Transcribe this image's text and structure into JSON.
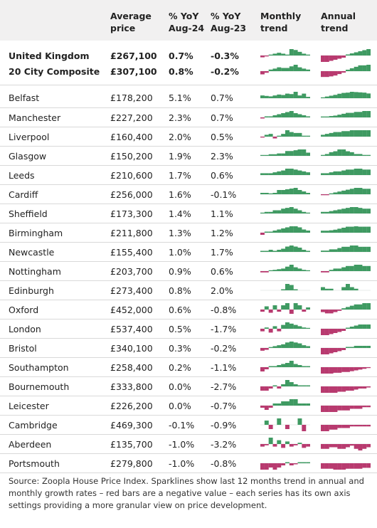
{
  "header": {
    "location": "",
    "avg_price": "Average price",
    "yoy24": "% YoY Aug-24",
    "yoy23": "% YoY Aug-23",
    "monthly": "Monthly trend",
    "annual": "Annual trend"
  },
  "colors": {
    "positive": "#3f9a62",
    "negative": "#b83a6f",
    "header_bg": "#f1f0f0",
    "divider": "#d9d9d9"
  },
  "summary_rows": [
    {
      "name": "United Kingdom",
      "price": "£267,100",
      "yoy24": "0.7%",
      "yoy23": "-0.3%",
      "monthly": [
        -0.1,
        -0.05,
        0.05,
        0.1,
        0.15,
        0.1,
        0.05,
        0.35,
        0.3,
        0.2,
        0.1,
        0.05
      ],
      "annual": [
        -0.3,
        -0.3,
        -0.25,
        -0.2,
        -0.15,
        -0.1,
        0.05,
        0.1,
        0.15,
        0.2,
        0.25,
        0.3
      ]
    },
    {
      "name": "20 City Composite",
      "price": "£307,100",
      "yoy24": "0.8%",
      "yoy23": "-0.2%",
      "monthly": [
        -0.1,
        -0.05,
        0.05,
        0.08,
        0.12,
        0.1,
        0.1,
        0.15,
        0.2,
        0.12,
        0.08,
        0.05
      ],
      "annual": [
        -0.2,
        -0.2,
        -0.18,
        -0.15,
        -0.1,
        -0.05,
        0.05,
        0.1,
        0.15,
        0.2,
        0.2,
        0.22
      ]
    }
  ],
  "cities": [
    {
      "name": "Belfast",
      "price": "£178,200",
      "yoy24": "5.1%",
      "yoy23": "0.7%",
      "monthly": [
        0.6,
        0.5,
        0.4,
        0.6,
        0.8,
        0.7,
        1.0,
        0.9,
        1.4,
        0.6,
        1.0,
        0.3
      ],
      "annual": [
        0.3,
        0.6,
        0.9,
        1.2,
        1.6,
        1.9,
        2.0,
        2.3,
        2.2,
        2.1,
        2.0,
        1.7
      ]
    },
    {
      "name": "Manchester",
      "price": "£227,200",
      "yoy24": "2.3%",
      "yoy23": "0.7%",
      "monthly": [
        -0.1,
        0.1,
        0.1,
        0.2,
        0.3,
        0.4,
        0.5,
        0.6,
        0.4,
        0.3,
        0.2,
        0.1
      ],
      "annual": [
        0.1,
        0.1,
        0.15,
        0.2,
        0.3,
        0.4,
        0.5,
        0.5,
        0.6,
        0.6,
        0.7,
        0.7
      ]
    },
    {
      "name": "Liverpool",
      "price": "£160,400",
      "yoy24": "2.0%",
      "yoy23": "0.5%",
      "monthly": [
        -0.1,
        0.2,
        0.3,
        -0.2,
        0.1,
        0.3,
        0.7,
        0.5,
        0.4,
        0.4,
        0.1,
        0.1
      ],
      "annual": [
        0.2,
        0.3,
        0.4,
        0.5,
        0.5,
        0.6,
        0.6,
        0.7,
        0.7,
        0.7,
        0.7,
        0.7
      ]
    },
    {
      "name": "Glasgow",
      "price": "£150,200",
      "yoy24": "1.9%",
      "yoy23": "2.3%",
      "monthly": [
        0.1,
        0.1,
        0.2,
        0.2,
        0.3,
        0.3,
        0.6,
        0.6,
        0.7,
        0.8,
        0.8,
        0.4
      ],
      "annual": [
        0.1,
        0.2,
        0.4,
        0.5,
        0.7,
        0.7,
        0.5,
        0.4,
        0.2,
        0.2,
        0.1,
        0.1
      ]
    },
    {
      "name": "Leeds",
      "price": "£210,600",
      "yoy24": "1.7%",
      "yoy23": "0.6%",
      "monthly": [
        0.1,
        0.1,
        0.1,
        0.15,
        0.2,
        0.25,
        0.35,
        0.35,
        0.3,
        0.25,
        0.2,
        0.15
      ],
      "annual": [
        0.1,
        0.1,
        0.15,
        0.2,
        0.2,
        0.25,
        0.3,
        0.3,
        0.35,
        0.35,
        0.3,
        0.3
      ]
    },
    {
      "name": "Cardiff",
      "price": "£256,000",
      "yoy24": "1.6%",
      "yoy23": "-0.1%",
      "monthly": [
        0.1,
        0.1,
        0.05,
        0.1,
        0.3,
        0.3,
        0.35,
        0.4,
        0.45,
        0.3,
        0.2,
        0.1
      ],
      "annual": [
        -0.05,
        -0.05,
        0.05,
        0.1,
        0.15,
        0.2,
        0.25,
        0.3,
        0.35,
        0.35,
        0.3,
        0.3
      ]
    },
    {
      "name": "Sheffield",
      "price": "£173,300",
      "yoy24": "1.4%",
      "yoy23": "1.1%",
      "monthly": [
        0.05,
        0.1,
        0.1,
        0.2,
        0.2,
        0.3,
        0.35,
        0.4,
        0.3,
        0.2,
        0.1,
        0.05
      ],
      "annual": [
        0.1,
        0.1,
        0.15,
        0.2,
        0.25,
        0.3,
        0.35,
        0.4,
        0.4,
        0.35,
        0.3,
        0.3
      ]
    },
    {
      "name": "Birmingham",
      "price": "£211,800",
      "yoy24": "1.3%",
      "yoy23": "1.2%",
      "monthly": [
        -0.1,
        0.05,
        0.05,
        0.1,
        0.15,
        0.2,
        0.25,
        0.3,
        0.3,
        0.25,
        0.15,
        0.1
      ],
      "annual": [
        0.1,
        0.1,
        0.12,
        0.15,
        0.2,
        0.25,
        0.3,
        0.3,
        0.32,
        0.3,
        0.3,
        0.3
      ]
    },
    {
      "name": "Newcastle",
      "price": "£155,400",
      "yoy24": "1.0%",
      "yoy23": "1.7%",
      "monthly": [
        0.05,
        0.05,
        0.1,
        0.05,
        0.1,
        0.15,
        0.25,
        0.3,
        0.25,
        0.2,
        0.1,
        0.05
      ],
      "annual": [
        0.05,
        0.05,
        0.1,
        0.1,
        0.15,
        0.2,
        0.2,
        0.25,
        0.25,
        0.2,
        0.2,
        0.2
      ]
    },
    {
      "name": "Nottingham",
      "price": "£203,700",
      "yoy24": "0.9%",
      "yoy23": "0.6%",
      "monthly": [
        -0.1,
        -0.1,
        0.05,
        0.1,
        0.15,
        0.2,
        0.35,
        0.5,
        0.3,
        0.2,
        0.1,
        0.05
      ],
      "annual": [
        -0.05,
        -0.05,
        0.05,
        0.1,
        0.1,
        0.15,
        0.2,
        0.2,
        0.25,
        0.25,
        0.2,
        0.2
      ]
    },
    {
      "name": "Edinburgh",
      "price": "£273,400",
      "yoy24": "0.8%",
      "yoy23": "2.0%",
      "monthly": [
        0,
        0,
        0,
        0,
        0,
        0.1,
        0.6,
        0.5,
        0.1,
        0,
        0,
        0
      ],
      "annual": [
        0.1,
        0.05,
        0.05,
        0,
        0,
        0.1,
        0.2,
        0.1,
        0.05,
        0,
        0,
        0
      ]
    },
    {
      "name": "Oxford",
      "price": "£452,000",
      "yoy24": "0.6%",
      "yoy23": "-0.8%",
      "monthly": [
        -0.1,
        0.15,
        -0.15,
        0.2,
        -0.1,
        0.2,
        0.3,
        -0.2,
        0.3,
        0.2,
        -0.1,
        0.1
      ],
      "annual": [
        -0.1,
        -0.15,
        -0.15,
        -0.1,
        -0.05,
        0.05,
        0.1,
        0.15,
        0.2,
        0.2,
        0.25,
        0.25
      ]
    },
    {
      "name": "London",
      "price": "£537,400",
      "yoy24": "0.5%",
      "yoy23": "-1.7%",
      "monthly": [
        -0.2,
        0.1,
        -0.3,
        0.2,
        -0.2,
        0.3,
        0.5,
        0.4,
        0.3,
        0.2,
        0.1,
        0.05
      ],
      "annual": [
        -0.3,
        -0.3,
        -0.25,
        -0.2,
        -0.15,
        -0.1,
        0.05,
        0.1,
        0.15,
        0.2,
        0.2,
        0.2
      ]
    },
    {
      "name": "Bristol",
      "price": "£340,100",
      "yoy24": "0.3%",
      "yoy23": "-0.2%",
      "monthly": [
        -0.15,
        -0.1,
        0.05,
        0.1,
        0.15,
        0.2,
        0.3,
        0.35,
        0.3,
        0.25,
        0.15,
        0.1
      ],
      "annual": [
        -0.3,
        -0.3,
        -0.25,
        -0.2,
        -0.15,
        -0.1,
        0.05,
        0.05,
        0.1,
        0.1,
        0.1,
        0.1
      ]
    },
    {
      "name": "Southampton",
      "price": "£258,400",
      "yoy24": "0.2%",
      "yoy23": "-1.1%",
      "monthly": [
        -0.2,
        -0.1,
        0.05,
        0.05,
        0.1,
        0.15,
        0.2,
        0.3,
        0.15,
        0.1,
        0.05,
        0.05
      ],
      "annual": [
        -0.4,
        -0.4,
        -0.4,
        -0.35,
        -0.35,
        -0.3,
        -0.3,
        -0.25,
        -0.2,
        -0.15,
        -0.1,
        -0.05
      ]
    },
    {
      "name": "Bournemouth",
      "price": "£333,800",
      "yoy24": "0.0%",
      "yoy23": "-2.7%",
      "monthly": [
        -0.2,
        -0.2,
        -0.1,
        0.05,
        -0.1,
        0.1,
        0.3,
        0.2,
        0.1,
        0.05,
        0.05,
        0.05
      ],
      "annual": [
        -0.3,
        -0.3,
        -0.3,
        -0.3,
        -0.25,
        -0.25,
        -0.2,
        -0.2,
        -0.15,
        -0.1,
        -0.1,
        -0.05
      ]
    },
    {
      "name": "Leicester",
      "price": "£226,200",
      "yoy24": "0.0%",
      "yoy23": "-0.7%",
      "monthly": [
        -0.05,
        -0.1,
        -0.05,
        0.05,
        0.05,
        0.1,
        0.1,
        0.15,
        0.15,
        0.05,
        0.05,
        0.05
      ],
      "annual": [
        -0.2,
        -0.2,
        -0.2,
        -0.2,
        -0.15,
        -0.15,
        -0.15,
        -0.1,
        -0.1,
        -0.1,
        -0.05,
        -0.05
      ]
    },
    {
      "name": "Cambridge",
      "price": "£469,300",
      "yoy24": "-0.1%",
      "yoy23": "-0.9%",
      "monthly": [
        0,
        0.2,
        -0.2,
        0,
        0.3,
        0,
        -0.2,
        0,
        0,
        0.3,
        -0.3,
        0
      ],
      "annual": [
        -0.2,
        -0.2,
        -0.15,
        -0.15,
        -0.1,
        -0.1,
        -0.1,
        -0.05,
        -0.05,
        -0.05,
        -0.05,
        -0.05
      ]
    },
    {
      "name": "Aberdeen",
      "price": "£135,700",
      "yoy24": "-1.0%",
      "yoy23": "-3.2%",
      "monthly": [
        -0.2,
        -0.1,
        0.5,
        -0.2,
        0.3,
        -0.3,
        0.2,
        -0.2,
        -0.1,
        0.1,
        -0.3,
        -0.2
      ],
      "annual": [
        -0.3,
        -0.3,
        -0.2,
        -0.2,
        -0.3,
        -0.3,
        -0.2,
        -0.1,
        -0.3,
        -0.4,
        -0.3,
        -0.2
      ]
    },
    {
      "name": "Portsmouth",
      "price": "£279,800",
      "yoy24": "-1.0%",
      "yoy23": "-0.8%",
      "monthly": [
        -0.3,
        -0.3,
        -0.2,
        -0.3,
        -0.2,
        -0.1,
        0.05,
        -0.1,
        -0.05,
        0.05,
        0.05,
        0.05
      ],
      "annual": [
        -0.3,
        -0.3,
        -0.3,
        -0.35,
        -0.35,
        -0.35,
        -0.3,
        -0.3,
        -0.3,
        -0.3,
        -0.25,
        -0.25
      ]
    }
  ],
  "source_note": "Source: Zoopla House Price Index. Sparklines show last 12 months trend in annual and monthly growth rates – red bars are a negative value – each series has its own axis settings providing a more granular view on price development."
}
